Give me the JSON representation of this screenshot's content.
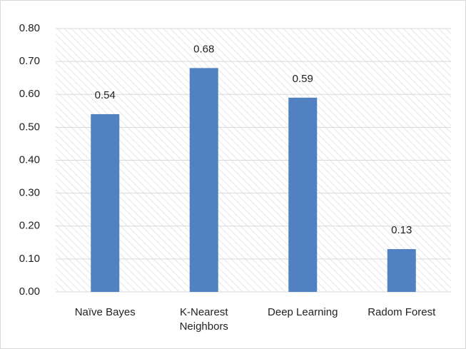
{
  "chart_data": {
    "type": "bar",
    "categories": [
      "Naïve Bayes",
      "K-Nearest Neighbors",
      "Deep Learning",
      "Radom Forest"
    ],
    "values": [
      0.54,
      0.68,
      0.59,
      0.13
    ],
    "color": "#5181c1",
    "ylim": [
      0,
      0.8
    ],
    "yticks": [
      {
        "value": 0,
        "label": "0.00"
      },
      {
        "value": 0.1,
        "label": "0.10"
      },
      {
        "value": 0.2,
        "label": "0.20"
      },
      {
        "value": 0.3,
        "label": "0.30"
      },
      {
        "value": 0.4,
        "label": "0.40"
      },
      {
        "value": 0.5,
        "label": "0.50"
      },
      {
        "value": 0.6,
        "label": "0.60"
      },
      {
        "value": 0.7,
        "label": "0.70"
      },
      {
        "value": 0.8,
        "label": "0.80"
      }
    ],
    "grid": true
  }
}
